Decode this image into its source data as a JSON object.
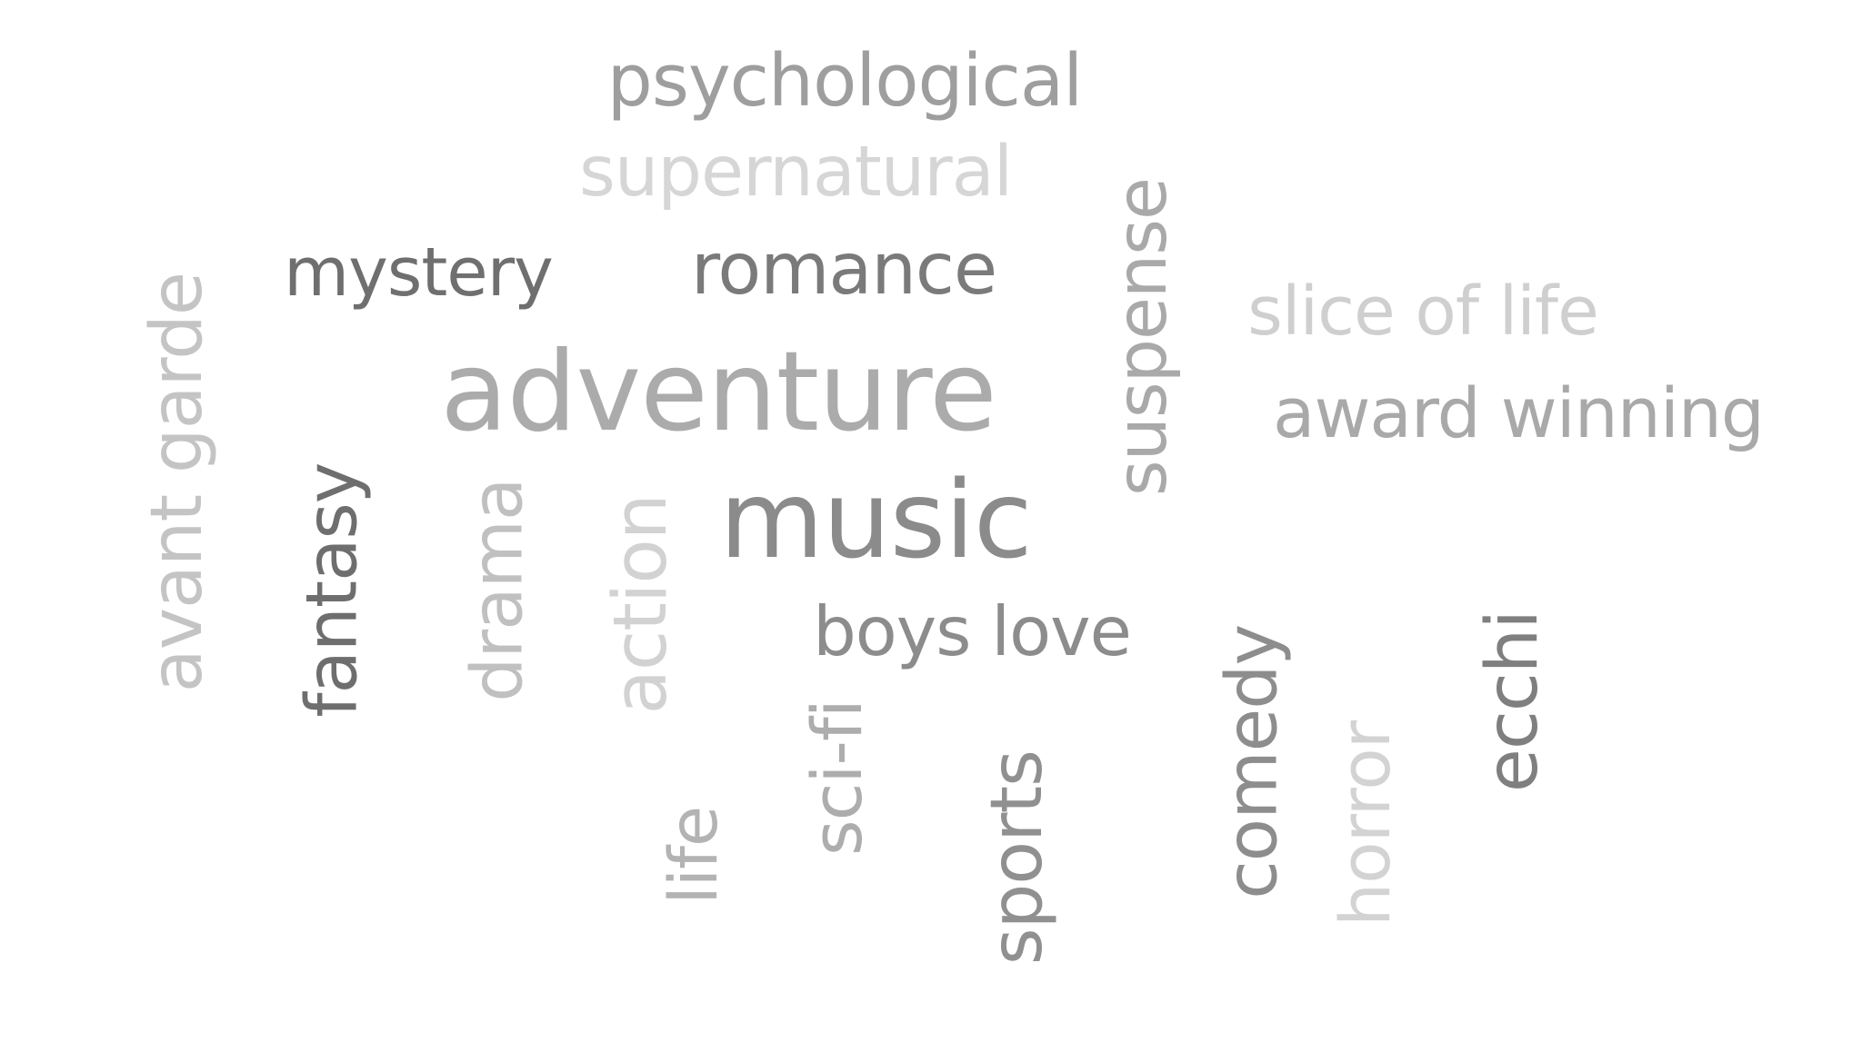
{
  "words": [
    {
      "text": "psychological",
      "orientation": "horizontal",
      "color": "#9e9e9e"
    },
    {
      "text": "supernatural",
      "orientation": "horizontal",
      "color": "#d6d6d6"
    },
    {
      "text": "mystery",
      "orientation": "horizontal",
      "color": "#6f6f6f"
    },
    {
      "text": "romance",
      "orientation": "horizontal",
      "color": "#7a7a7a"
    },
    {
      "text": "suspense",
      "orientation": "vertical",
      "color": "#a9a9a9"
    },
    {
      "text": "slice of life",
      "orientation": "horizontal",
      "color": "#cfcfcf"
    },
    {
      "text": "adventure",
      "orientation": "horizontal",
      "color": "#ababab"
    },
    {
      "text": "award winning",
      "orientation": "horizontal",
      "color": "#a9a9a9"
    },
    {
      "text": "avant garde",
      "orientation": "vertical",
      "color": "#c4c4c4"
    },
    {
      "text": "fantasy",
      "orientation": "vertical",
      "color": "#6e6e6e"
    },
    {
      "text": "drama",
      "orientation": "vertical",
      "color": "#c0c0c0"
    },
    {
      "text": "action",
      "orientation": "vertical",
      "color": "#d2d2d2"
    },
    {
      "text": "music",
      "orientation": "horizontal",
      "color": "#8b8b8b"
    },
    {
      "text": "boys love",
      "orientation": "horizontal",
      "color": "#8c8c8c"
    },
    {
      "text": "sci-fi",
      "orientation": "vertical",
      "color": "#adadad"
    },
    {
      "text": "life",
      "orientation": "vertical",
      "color": "#b3b3b3"
    },
    {
      "text": "sports",
      "orientation": "vertical",
      "color": "#909090"
    },
    {
      "text": "comedy",
      "orientation": "vertical",
      "color": "#8d8d8d"
    },
    {
      "text": "horror",
      "orientation": "vertical",
      "color": "#d3d3d3"
    },
    {
      "text": "ecchi",
      "orientation": "vertical",
      "color": "#7f7f7f"
    }
  ]
}
